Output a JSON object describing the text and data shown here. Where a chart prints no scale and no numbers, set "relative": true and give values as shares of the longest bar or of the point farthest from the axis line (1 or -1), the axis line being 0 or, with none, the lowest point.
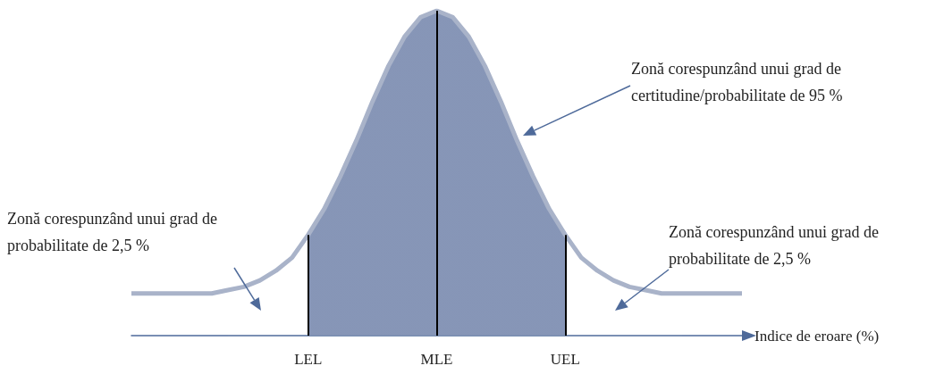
{
  "chart_data": {
    "type": "area",
    "relative": true,
    "xlabel": "Indice de eroare (%)",
    "categories": [
      null,
      null,
      null,
      null,
      null,
      null,
      null,
      null,
      null,
      null,
      null,
      "LEL",
      null,
      null,
      null,
      null,
      null,
      null,
      null,
      "MLE",
      null,
      null,
      null,
      null,
      null,
      null,
      null,
      "UEL",
      null,
      null,
      null,
      null,
      null,
      null,
      null,
      null,
      null,
      null,
      null
    ],
    "series": [
      {
        "type": "line",
        "color": "#a9b3c9",
        "values": [
          0.13,
          0.13,
          0.13,
          0.13,
          0.13,
          0.13,
          0.14,
          0.15,
          0.17,
          0.2,
          0.24,
          0.31,
          0.39,
          0.49,
          0.6,
          0.72,
          0.83,
          0.92,
          0.98,
          1.0,
          0.98,
          0.92,
          0.83,
          0.72,
          0.6,
          0.49,
          0.39,
          0.31,
          0.24,
          0.2,
          0.17,
          0.15,
          0.14,
          0.13,
          0.13,
          0.13,
          0.13,
          0.13,
          0.13
        ]
      },
      {
        "type": "area",
        "color": "#8090b3",
        "values": [
          null,
          null,
          null,
          null,
          null,
          null,
          null,
          null,
          null,
          null,
          null,
          0.31,
          0.39,
          0.49,
          0.6,
          0.72,
          0.83,
          0.92,
          0.98,
          1.0,
          0.98,
          0.92,
          0.83,
          0.72,
          0.6,
          0.49,
          0.39,
          0.31,
          null,
          null,
          null,
          null,
          null,
          null,
          null,
          null,
          null,
          null,
          null
        ]
      }
    ],
    "ref_lines": [
      {
        "axis": "x",
        "value": "LEL",
        "color": "#000000"
      },
      {
        "axis": "x",
        "value": "MLE",
        "color": "#000000"
      },
      {
        "axis": "x",
        "value": "UEL",
        "color": "#000000"
      }
    ],
    "annotations": [
      "Zonă corespunzând unui grad de certitudine/probabilitate de 95 %",
      "Zonă corespunzând unui grad de probabilitate de 2,5 %",
      "Zonă corespunzând unui grad de probabilitate de 2,5 %"
    ],
    "grid": false,
    "marker": "none"
  }
}
